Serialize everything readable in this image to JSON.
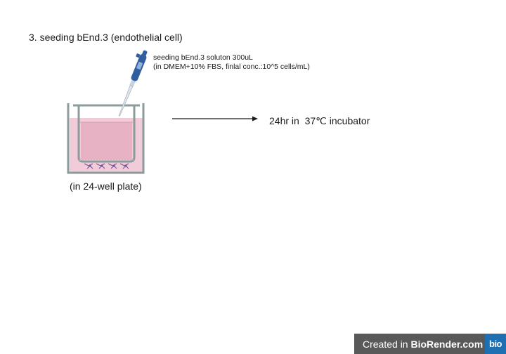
{
  "step": {
    "title": "3. seeding bEnd.3 (endothelial cell)"
  },
  "pipette_note": {
    "line1": "seeding bEnd.3 soluton 300uL",
    "line2": "(in DMEM+10% FBS, finlal conc.:10^5 cells/mL)"
  },
  "incubation": {
    "label": "24hr in  37℃ incubator"
  },
  "plate": {
    "caption": "(in 24-well plate)"
  },
  "credit": {
    "prefix": "Created in ",
    "brand": "BioRender.com",
    "logo": "bio"
  },
  "colors": {
    "medium_pink": "#e7b3c4",
    "well_pink": "#f1cbd7",
    "well_outline": "#8c9b9c",
    "pipette_blue": "#2f5f9e",
    "cell_purple": "#6b4fa0",
    "credit_bar": "#595959",
    "logo_blue": "#1f6fb3"
  },
  "icons": [
    "pipette-icon",
    "transwell-insert-icon",
    "arrow-icon",
    "endothelial-cells-icon"
  ]
}
